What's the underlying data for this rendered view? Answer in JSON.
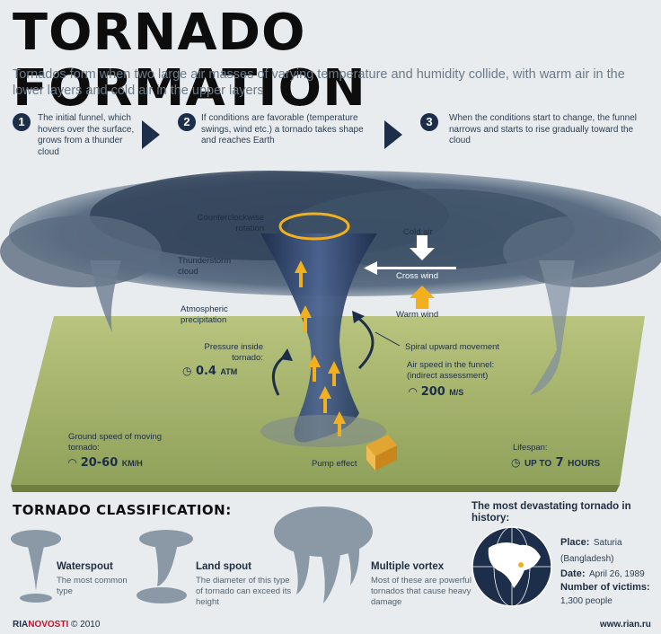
{
  "title": "TORNADO FORMATION",
  "subtitle": "Tornados form when two large air masses of varying temperature and humidity collide, with warm air in the lower layers and cold air in the upper layers",
  "steps": [
    {
      "num": "1",
      "text": "The initial funnel, which hovers over the surface, grows from a thunder cloud"
    },
    {
      "num": "2",
      "text": "If conditions are favorable (temperature swings, wind etc.) a tornado takes shape and reaches Earth"
    },
    {
      "num": "3",
      "text": "When the conditions start to change, the funnel narrows and starts to rise gradually toward the cloud"
    }
  ],
  "diagram": {
    "counterclockwise": "Counterclockwise rotation",
    "thunderstorm": "Thunderstorm cloud",
    "precipitation": "Atmospheric precipitation",
    "pressure_label": "Pressure inside tornado:",
    "pressure_value": "0.4",
    "pressure_unit": "ATM",
    "cold_air": "Cold air",
    "cross_wind": "Cross wind",
    "warm_wind": "Warm wind",
    "spiral": "Spiral upward movement",
    "airspeed_label": "Air speed in the funnel: (indirect assessment)",
    "airspeed_value": "200",
    "airspeed_unit": "M/S",
    "ground_label": "Ground speed of moving tornado:",
    "ground_value": "20-60",
    "ground_unit": "KM/H",
    "pump": "Pump effect",
    "lifespan_label": "Lifespan:",
    "lifespan_value_prefix": "UP TO",
    "lifespan_value": "7",
    "lifespan_unit": "HOURS"
  },
  "classification": {
    "title": "TORNADO CLASSIFICATION:",
    "items": [
      {
        "name": "Waterspout",
        "desc": "The most common type"
      },
      {
        "name": "Land spout",
        "desc": "The diameter of this type of tornado can exceed its height"
      },
      {
        "name": "Multiple vortex",
        "desc": "Most of these are powerful tornados that cause heavy damage"
      }
    ]
  },
  "history": {
    "title": "The most devastating tornado in history:",
    "place_key": "Place:",
    "place_val": "Saturia (Bangladesh)",
    "date_key": "Date:",
    "date_val": "April 26, 1989",
    "victims_key": "Number of victims:",
    "victims_val": "1,300 people"
  },
  "footer": {
    "brand_ria": "RIA",
    "brand_novosti": "NOVOSTI",
    "copyright": "© 2010",
    "url": "www.rian.ru"
  },
  "colors": {
    "navy": "#1c2e4a",
    "arrow_yellow": "#f2b01e",
    "ground_green": "#a4b566",
    "cloud": "#4a5d72",
    "brand_red": "#c8102e"
  }
}
